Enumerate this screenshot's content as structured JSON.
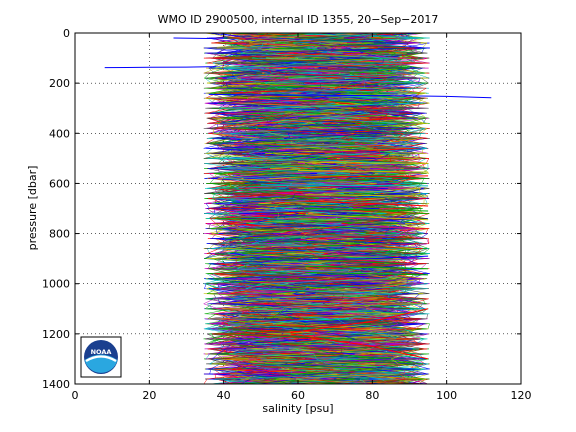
{
  "chart_data": {
    "type": "line",
    "title": "WMO ID 2900500, internal ID 1355, 20−Sep−2017",
    "xlabel": "salinity [psu]",
    "ylabel": "pressure [dbar]",
    "xlim": [
      0,
      120
    ],
    "ylim": [
      1400,
      0
    ],
    "y_reversed": true,
    "grid": true,
    "grid_style": "dotted",
    "x_ticks": [
      0,
      20,
      40,
      60,
      80,
      100,
      120
    ],
    "x_tick_labels": [
      "0",
      "20",
      "40",
      "60",
      "80",
      "100",
      "120"
    ],
    "y_ticks": [
      0,
      200,
      400,
      600,
      800,
      1000,
      1200,
      1400
    ],
    "y_tick_labels": [
      "0",
      "200",
      "400",
      "600",
      "800",
      "1000",
      "1200",
      "1400"
    ],
    "profile_band": {
      "salinity_min": 34.6,
      "salinity_max": 95.5,
      "pressure_min": 0,
      "pressure_max": 1400,
      "profile_count": 200
    },
    "palette": [
      "#0000ff",
      "#00aa00",
      "#ff0000",
      "#00bfbf",
      "#bf00bf",
      "#bfbf00",
      "#404040"
    ],
    "series": [
      {
        "color": "#0000ff",
        "x": [
          26.5,
          36,
          38,
          40
        ],
        "y": [
          20,
          22,
          21,
          20
        ]
      },
      {
        "color": "#0000ff",
        "x": [
          8,
          20,
          30,
          36,
          38
        ],
        "y": [
          138,
          137,
          136,
          135,
          134
        ]
      },
      {
        "color": "#0000ff",
        "x": [
          36,
          60,
          88,
          100,
          112
        ],
        "y": [
          245,
          248,
          250,
          253,
          258
        ]
      },
      {
        "color": "#bfbf00",
        "x": [
          60,
          75,
          95
        ],
        "y": [
          515,
          518,
          520
        ]
      },
      {
        "color": "#bfbf00",
        "x": [
          60,
          80,
          95
        ],
        "y": [
          548,
          552,
          555
        ]
      },
      {
        "color": "#ff0000",
        "x": [
          62,
          80,
          95
        ],
        "y": [
          575,
          572,
          570
        ]
      },
      {
        "color": "#00bfbf",
        "x": [
          50,
          70,
          95
        ],
        "y": [
          605,
          608,
          610
        ]
      },
      {
        "color": "#bfbf00",
        "x": [
          62,
          80,
          95
        ],
        "y": [
          645,
          648,
          650
        ]
      },
      {
        "color": "#ff0000",
        "x": [
          62,
          80,
          95
        ],
        "y": [
          670,
          680,
          690
        ]
      },
      {
        "color": "#00aa00",
        "x": [
          62,
          80,
          95
        ],
        "y": [
          700,
          705,
          710
        ]
      },
      {
        "color": "#bfbf00",
        "x": [
          62,
          80,
          95
        ],
        "y": [
          725,
          735,
          745
        ]
      },
      {
        "color": "#0000ff",
        "x": [
          60,
          80,
          95
        ],
        "y": [
          905,
          900,
          890
        ]
      },
      {
        "color": "#00aa00",
        "x": [
          62,
          80,
          95
        ],
        "y": [
          930,
          935,
          940
        ]
      },
      {
        "color": "#00aa00",
        "x": [
          62,
          80,
          95
        ],
        "y": [
          955,
          960,
          965
        ]
      },
      {
        "color": "#ff0000",
        "x": [
          95,
          80,
          58
        ],
        "y": [
          1100,
          1150,
          1195
        ]
      },
      {
        "color": "#ff0000",
        "x": [
          58,
          80,
          95
        ],
        "y": [
          1200,
          1250,
          1300
        ]
      }
    ]
  },
  "logo": {
    "text": "NOAA"
  }
}
